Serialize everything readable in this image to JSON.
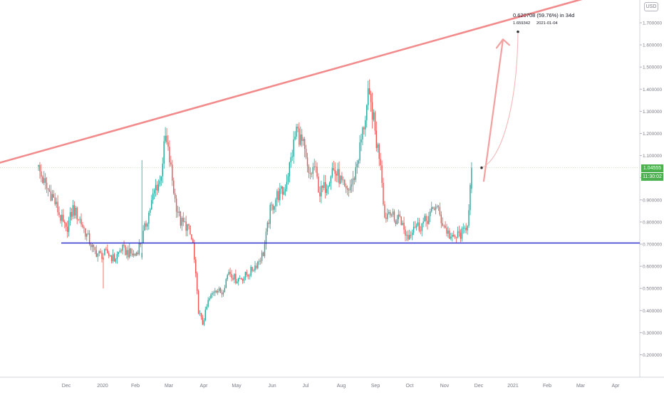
{
  "currency_label": "USD",
  "last_price_label": "1.04555",
  "countdown_label": "11:30:02",
  "colors": {
    "up": "#26a69a",
    "down": "#ef5350",
    "trendline": "#f28b8c",
    "support": "#1e22c8",
    "last_price_bg": "#4caf50",
    "countdown_bg": "#4caf50",
    "axis_text": "#787b86",
    "price_line": "#cfe8c0"
  },
  "annotation": {
    "text_line1": "0.620708 (59.76%) in 34d",
    "text_line2_price": "1.659342",
    "text_line2_date": "2021-01-04",
    "start_value": 1.045,
    "end_value": 1.659342
  },
  "chart_data": {
    "type": "candlestick",
    "title": "",
    "xlabel": "",
    "ylabel": "",
    "ylim": [
      0.14,
      1.9
    ],
    "y_ticks": [
      "0.200000",
      "0.300000",
      "0.400000",
      "0.500000",
      "0.600000",
      "0.700000",
      "0.800000",
      "0.900000",
      "1.000000",
      "1.100000",
      "1.200000",
      "1.300000",
      "1.400000",
      "1.500000",
      "1.600000",
      "1.700000"
    ],
    "x_ticks": [
      "Dec",
      "2020",
      "Feb",
      "Mar",
      "Apr",
      "May",
      "Jun",
      "Jul",
      "Aug",
      "Sep",
      "Oct",
      "Nov",
      "Dec",
      "2021",
      "Feb",
      "Mar",
      "Apr"
    ],
    "support_level": 0.705,
    "trendline_values": [
      1.068,
      1.88
    ],
    "last_price": 1.04555,
    "anchors": [
      [
        0,
        1.04
      ],
      [
        5,
        0.96
      ],
      [
        10,
        0.92
      ],
      [
        16,
        0.82
      ],
      [
        20,
        0.76
      ],
      [
        25,
        0.86
      ],
      [
        30,
        0.81
      ],
      [
        35,
        0.74
      ],
      [
        40,
        0.67
      ],
      [
        45,
        0.65
      ],
      [
        50,
        0.66
      ],
      [
        55,
        0.63
      ],
      [
        60,
        0.68
      ],
      [
        65,
        0.66
      ],
      [
        70,
        0.65
      ],
      [
        75,
        0.72
      ],
      [
        80,
        0.84
      ],
      [
        85,
        0.96
      ],
      [
        88,
        0.98
      ],
      [
        92,
        1.18
      ],
      [
        95,
        1.08
      ],
      [
        99,
        0.9
      ],
      [
        103,
        0.8
      ],
      [
        108,
        0.78
      ],
      [
        112,
        0.7
      ],
      [
        116,
        0.4
      ],
      [
        119,
        0.34
      ],
      [
        123,
        0.44
      ],
      [
        128,
        0.5
      ],
      [
        133,
        0.48
      ],
      [
        138,
        0.58
      ],
      [
        143,
        0.54
      ],
      [
        148,
        0.55
      ],
      [
        153,
        0.57
      ],
      [
        158,
        0.61
      ],
      [
        163,
        0.66
      ],
      [
        168,
        0.85
      ],
      [
        173,
        0.92
      ],
      [
        178,
        0.94
      ],
      [
        183,
        1.08
      ],
      [
        187,
        1.22
      ],
      [
        192,
        1.14
      ],
      [
        196,
        1.0
      ],
      [
        200,
        1.05
      ],
      [
        204,
        0.93
      ],
      [
        208,
        0.96
      ],
      [
        213,
        1.04
      ],
      [
        218,
        1.0
      ],
      [
        223,
        0.93
      ],
      [
        228,
        0.98
      ],
      [
        232,
        1.1
      ],
      [
        236,
        1.24
      ],
      [
        239,
        1.36
      ],
      [
        242,
        1.3
      ],
      [
        245,
        1.16
      ],
      [
        248,
        1.08
      ],
      [
        251,
        0.82
      ],
      [
        255,
        0.86
      ],
      [
        258,
        0.8
      ],
      [
        262,
        0.83
      ],
      [
        265,
        0.76
      ],
      [
        268,
        0.73
      ],
      [
        272,
        0.79
      ],
      [
        276,
        0.78
      ],
      [
        280,
        0.8
      ],
      [
        284,
        0.83
      ],
      [
        288,
        0.88
      ],
      [
        292,
        0.81
      ],
      [
        296,
        0.76
      ],
      [
        300,
        0.72
      ],
      [
        304,
        0.74
      ],
      [
        308,
        0.75
      ],
      [
        311,
        0.8
      ],
      [
        314,
        1.03
      ]
    ],
    "special_candles": [
      {
        "index": 47,
        "open": 0.64,
        "high": 0.66,
        "low": 0.5,
        "close": 0.63
      },
      {
        "index": 75,
        "open": 0.64,
        "high": 1.08,
        "low": 0.63,
        "close": 0.66
      },
      {
        "index": 314,
        "open": 0.95,
        "high": 1.07,
        "low": 0.93,
        "close": 1.045
      }
    ]
  }
}
